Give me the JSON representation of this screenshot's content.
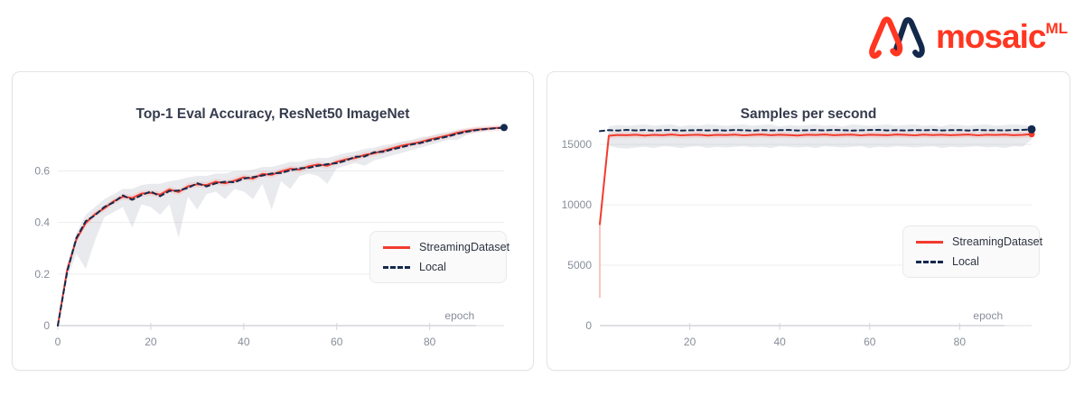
{
  "logo": {
    "wordmark": "mosaic",
    "superscript": "ML",
    "red": "#ff3621",
    "navy": "#12294b"
  },
  "legend": {
    "items": [
      {
        "label": "StreamingDataset",
        "color": "#f23b2e",
        "style": "solid"
      },
      {
        "label": "Local",
        "color": "#14294e",
        "style": "dashed"
      }
    ]
  },
  "chart_data": [
    {
      "type": "line",
      "title": "Top-1 Eval Accuracy, ResNet50 ImageNet",
      "xlabel": "epoch",
      "xlim": [
        0,
        96
      ],
      "ylim": [
        0,
        0.78
      ],
      "xaxis_extent": 90,
      "xticks": [
        0,
        20,
        40,
        60,
        80
      ],
      "xtick_labels": [
        "0",
        "20",
        "40",
        "60",
        "80"
      ],
      "yticks": [
        0,
        0.2,
        0.4,
        0.6
      ],
      "ytick_labels": [
        "0",
        "0.2",
        "0.4",
        "0.6"
      ],
      "grid": true,
      "legend_position": "lower right",
      "halo": 0.012,
      "halo_color": "rgba(242,59,46,0.10)",
      "x": [
        0,
        2,
        4,
        6,
        8,
        10,
        12,
        14,
        16,
        18,
        20,
        22,
        24,
        26,
        28,
        30,
        32,
        34,
        36,
        38,
        40,
        42,
        44,
        46,
        48,
        50,
        52,
        54,
        56,
        58,
        60,
        62,
        64,
        66,
        68,
        70,
        72,
        74,
        76,
        78,
        80,
        82,
        84,
        86,
        88,
        90,
        92,
        94,
        96
      ],
      "band": {
        "color": "rgba(176,180,192,0.28)",
        "low": [
          0,
          0.18,
          0.28,
          0.22,
          0.33,
          0.42,
          0.44,
          0.46,
          0.38,
          0.47,
          0.46,
          0.43,
          0.47,
          0.34,
          0.5,
          0.45,
          0.51,
          0.52,
          0.49,
          0.53,
          0.52,
          0.49,
          0.55,
          0.45,
          0.56,
          0.53,
          0.58,
          0.59,
          0.58,
          0.55,
          0.61,
          0.62,
          0.63,
          0.62,
          0.64,
          0.65,
          0.66,
          0.67,
          0.68,
          0.69,
          0.7,
          0.71,
          0.72,
          0.72,
          0.74,
          0.75,
          0.755,
          0.762,
          0.766
        ],
        "high": [
          0.01,
          0.24,
          0.36,
          0.43,
          0.46,
          0.49,
          0.51,
          0.53,
          0.53,
          0.545,
          0.55,
          0.55,
          0.56,
          0.565,
          0.575,
          0.58,
          0.58,
          0.59,
          0.59,
          0.6,
          0.6,
          0.605,
          0.615,
          0.615,
          0.625,
          0.635,
          0.635,
          0.645,
          0.65,
          0.65,
          0.66,
          0.67,
          0.675,
          0.685,
          0.69,
          0.7,
          0.705,
          0.715,
          0.72,
          0.73,
          0.735,
          0.745,
          0.75,
          0.758,
          0.764,
          0.768,
          0.77,
          0.772,
          0.773
        ]
      },
      "series": [
        {
          "name": "StreamingDataset",
          "color": "#f23b2e",
          "dash": null,
          "width": 2,
          "dot": 0,
          "values": [
            0,
            0.215,
            0.335,
            0.398,
            0.432,
            0.455,
            0.482,
            0.5,
            0.495,
            0.512,
            0.515,
            0.508,
            0.528,
            0.518,
            0.54,
            0.548,
            0.545,
            0.558,
            0.552,
            0.562,
            0.575,
            0.57,
            0.588,
            0.585,
            0.598,
            0.608,
            0.605,
            0.618,
            0.625,
            0.62,
            0.635,
            0.645,
            0.65,
            0.662,
            0.668,
            0.678,
            0.688,
            0.698,
            0.705,
            0.712,
            0.722,
            0.73,
            0.738,
            0.748,
            0.755,
            0.76,
            0.763,
            0.766,
            0.768
          ]
        },
        {
          "name": "Local",
          "color": "#14294e",
          "dash": "5 4",
          "width": 2,
          "dot": 4,
          "values": [
            0,
            0.208,
            0.34,
            0.405,
            0.428,
            0.46,
            0.478,
            0.505,
            0.488,
            0.506,
            0.52,
            0.502,
            0.522,
            0.524,
            0.534,
            0.552,
            0.54,
            0.552,
            0.558,
            0.556,
            0.57,
            0.576,
            0.582,
            0.59,
            0.592,
            0.602,
            0.61,
            0.612,
            0.62,
            0.626,
            0.63,
            0.64,
            0.655,
            0.656,
            0.672,
            0.674,
            0.684,
            0.692,
            0.702,
            0.708,
            0.718,
            0.726,
            0.734,
            0.744,
            0.752,
            0.758,
            0.762,
            0.765,
            0.768
          ]
        }
      ]
    },
    {
      "type": "line",
      "title": "Samples per second",
      "xlabel": "epoch",
      "xlim": [
        0,
        96
      ],
      "ylim": [
        0,
        16800
      ],
      "xaxis_extent": 90,
      "xticks": [
        20,
        40,
        60,
        80
      ],
      "xtick_labels": [
        "20",
        "40",
        "60",
        "80"
      ],
      "yticks": [
        0,
        5000,
        10000,
        15000
      ],
      "ytick_labels": [
        "0",
        "5000",
        "10000",
        "15000"
      ],
      "grid": true,
      "legend_position": "lower right",
      "halo": 260,
      "halo_color": "rgba(242,59,46,0.10)",
      "spike": {
        "x": 0,
        "from": 2300,
        "to": 8400
      },
      "x": [
        0,
        2,
        4,
        6,
        8,
        10,
        12,
        14,
        16,
        18,
        20,
        22,
        24,
        26,
        28,
        30,
        32,
        34,
        36,
        38,
        40,
        42,
        44,
        46,
        48,
        50,
        52,
        54,
        56,
        58,
        60,
        62,
        64,
        66,
        68,
        70,
        72,
        74,
        76,
        78,
        80,
        82,
        84,
        86,
        88,
        90,
        92,
        94,
        96
      ],
      "band": {
        "color": "rgba(176,180,192,0.28)",
        "low": [
          8300,
          14900,
          14700,
          14650,
          14750,
          14800,
          14700,
          14850,
          14800,
          14700,
          14800,
          14850,
          14700,
          14800,
          14750,
          14800,
          14850,
          14750,
          14800,
          14700,
          14850,
          14800,
          14750,
          14800,
          14700,
          14850,
          14800,
          14750,
          14800,
          14850,
          14700,
          14800,
          14750,
          14850,
          14800,
          14750,
          14800,
          14850,
          14700,
          14800,
          14750,
          14800,
          14850,
          14750,
          14800,
          14700,
          14850,
          14800,
          15400
        ],
        "high": [
          8500,
          16500,
          16600,
          16550,
          16600,
          16650,
          16550,
          16600,
          16650,
          16500,
          16600,
          16550,
          16650,
          16600,
          16550,
          16600,
          16650,
          16550,
          16600,
          16650,
          16500,
          16600,
          16550,
          16600,
          16650,
          16550,
          16600,
          16500,
          16650,
          16600,
          16550,
          16600,
          16650,
          16550,
          16600,
          16650,
          16550,
          16600,
          16500,
          16650,
          16600,
          16550,
          16600,
          16650,
          16550,
          16600,
          16650,
          16600,
          16500
        ]
      },
      "series": [
        {
          "name": "StreamingDataset",
          "color": "#f23b2e",
          "dash": null,
          "width": 2,
          "dot": 3.5,
          "values": [
            8400,
            15720,
            15780,
            15760,
            15800,
            15740,
            15790,
            15760,
            15820,
            15750,
            15780,
            15800,
            15740,
            15790,
            15770,
            15810,
            15750,
            15790,
            15820,
            15760,
            15800,
            15770,
            15740,
            15800,
            15780,
            15820,
            15760,
            15790,
            15810,
            15750,
            15800,
            15780,
            15760,
            15820,
            15790,
            15750,
            15810,
            15770,
            15800,
            15760,
            15790,
            15820,
            15750,
            15800,
            15780,
            15810,
            15760,
            15790,
            15850
          ]
        },
        {
          "name": "Local",
          "color": "#14294e",
          "dash": "5 4",
          "width": 2,
          "dot": 4.5,
          "values": [
            16100,
            16180,
            16150,
            16200,
            16160,
            16190,
            16140,
            16180,
            16200,
            16150,
            16170,
            16190,
            16160,
            16180,
            16150,
            16200,
            16170,
            16140,
            16190,
            16160,
            16180,
            16200,
            16150,
            16170,
            16190,
            16160,
            16200,
            16180,
            16150,
            16170,
            16190,
            16200,
            16160,
            16180,
            16150,
            16190,
            16170,
            16200,
            16160,
            16180,
            16190,
            16150,
            16200,
            16170,
            16180,
            16160,
            16190,
            16200,
            16250
          ]
        }
      ]
    }
  ]
}
